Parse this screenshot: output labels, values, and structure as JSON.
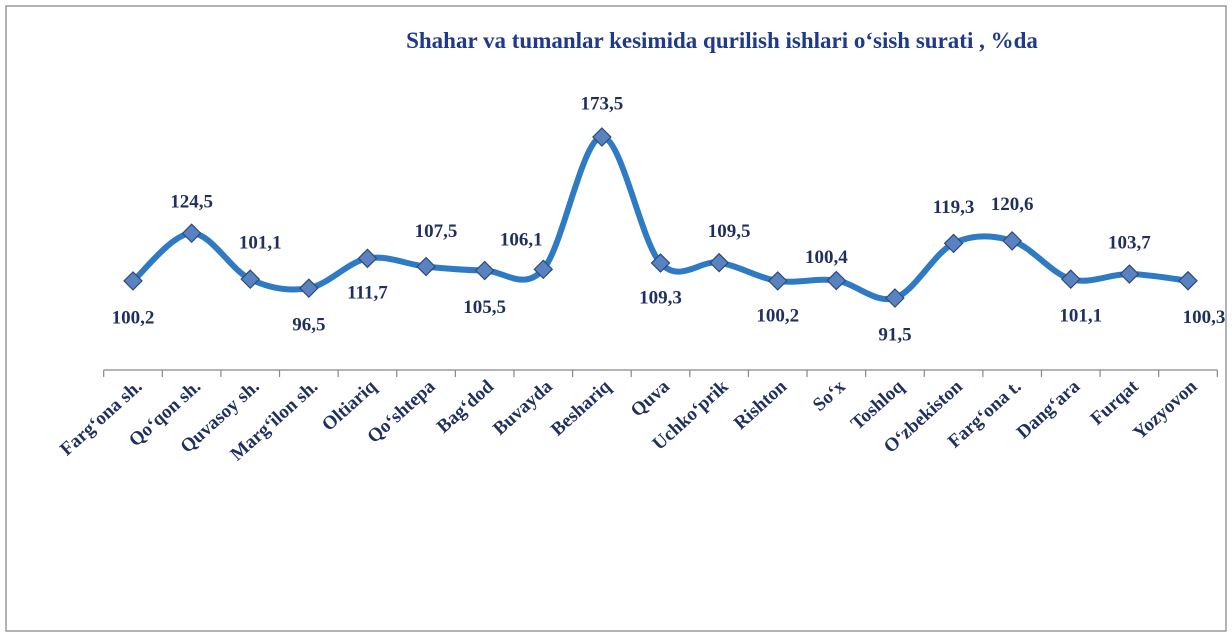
{
  "chart_data": {
    "type": "line",
    "title": "Shahar  va tumanlar  kesimida qurilish ishlari o‘sish surati , %da",
    "categories": [
      "Farg‘ona sh.",
      "Qo‘qon sh.",
      "Quvasoy sh.",
      "Marg‘ilon sh.",
      "Oltiariq",
      "Qo‘shtepa",
      "Bag‘dod",
      "Buvayda",
      "Beshariq",
      "Quva",
      "Uchko‘prik",
      "Rishton",
      "So‘x",
      "Toshloq",
      "O‘zbekiston",
      "Farg‘ona t.",
      "Dang‘ara",
      "Furqat",
      "Yozyovon"
    ],
    "series": [
      {
        "name": "Qurilish ishlari o‘sish surati",
        "color": "#2e7bc4",
        "values": [
          100.2,
          124.5,
          101.1,
          96.5,
          111.7,
          107.5,
          105.5,
          106.1,
          173.5,
          109.3,
          109.5,
          100.2,
          100.4,
          91.5,
          119.3,
          120.6,
          101.1,
          103.7,
          100.3
        ],
        "value_labels": [
          "100,2",
          "124,5",
          "101,1",
          "96,5",
          "111,7",
          "107,5",
          "105,5",
          "106,1",
          "173,5",
          "109,3",
          "109,5",
          "100,2",
          "100,4",
          "91,5",
          "119,3",
          "120,6",
          "101,1",
          "103,7",
          "100,3"
        ]
      }
    ]
  }
}
